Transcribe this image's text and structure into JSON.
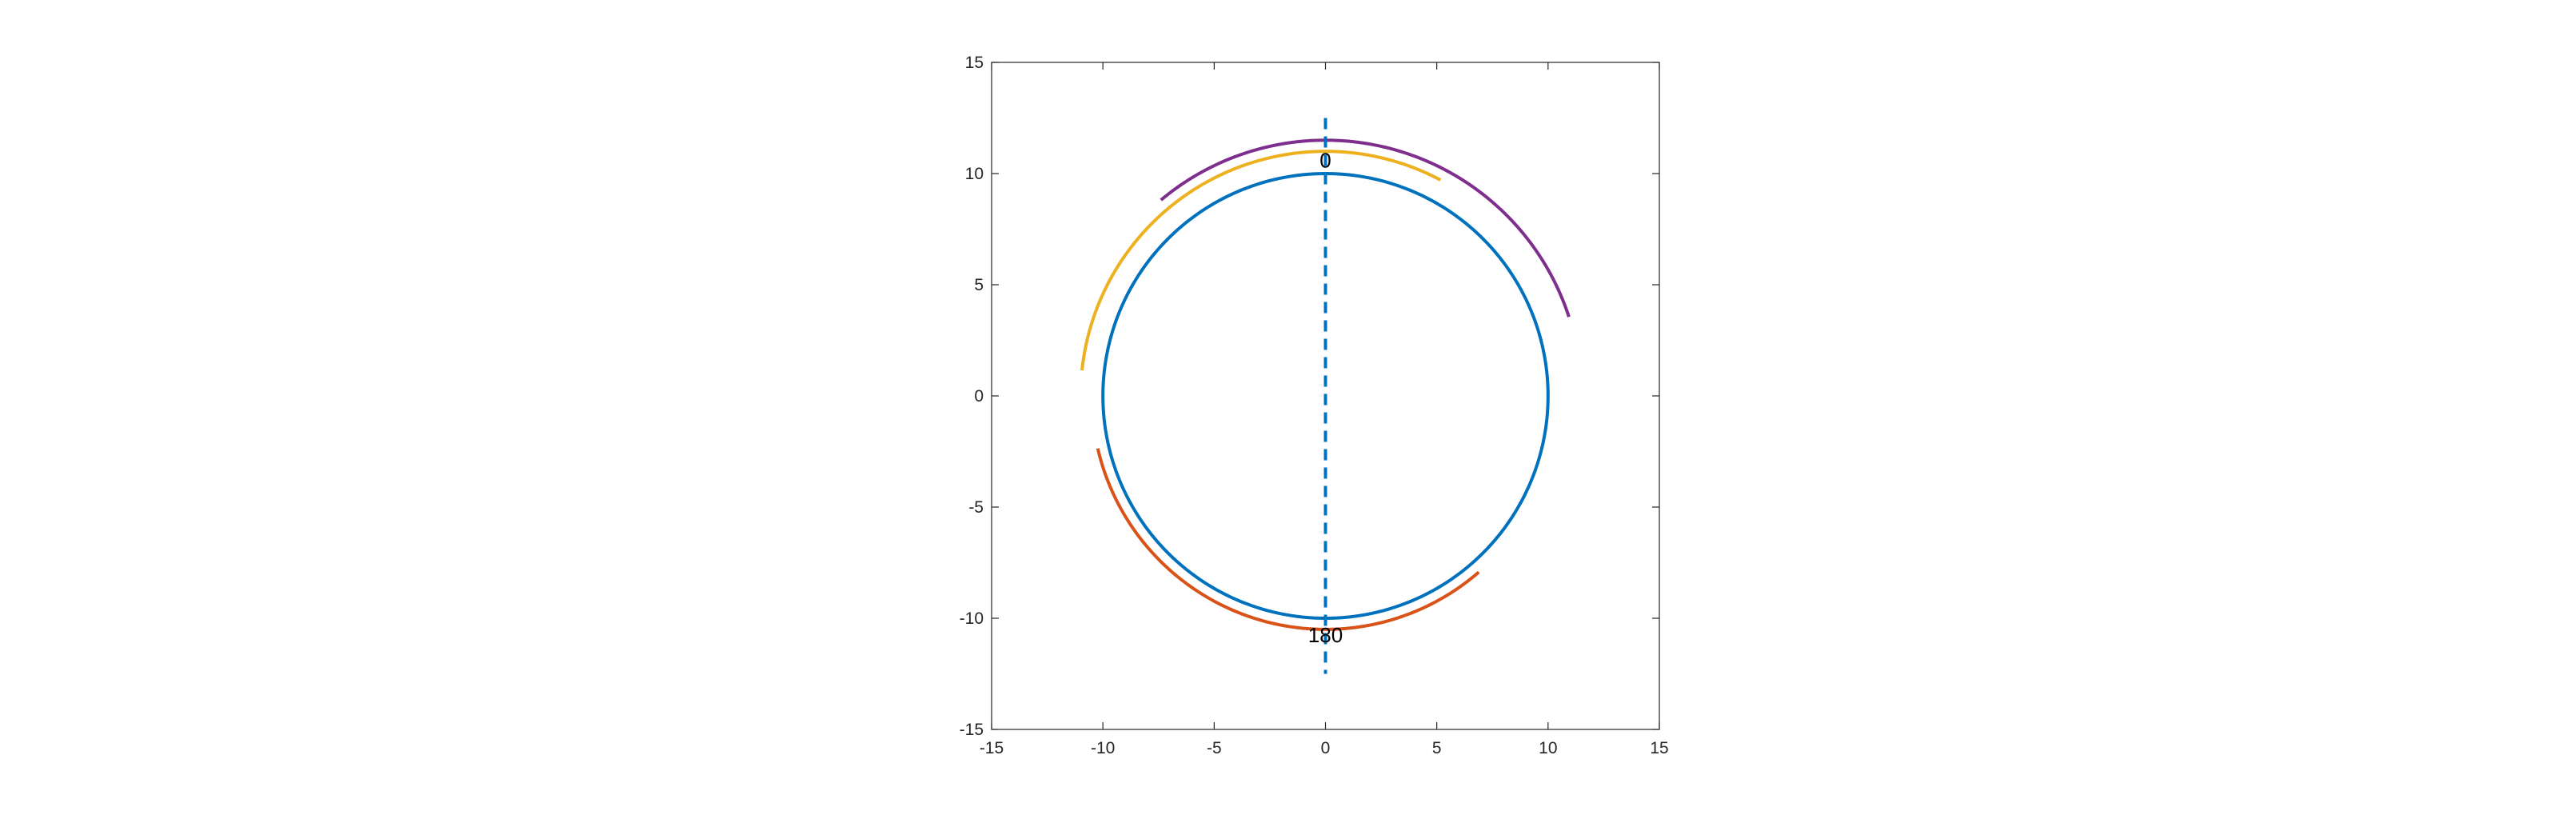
{
  "chart_data": {
    "type": "line",
    "title": "",
    "xlabel": "",
    "ylabel": "",
    "xlim": [
      -15,
      15
    ],
    "ylim": [
      -15,
      15
    ],
    "xticks": [
      -15,
      -10,
      -5,
      0,
      5,
      10,
      15
    ],
    "yticks": [
      -15,
      -10,
      -5,
      0,
      5,
      10,
      15
    ],
    "xtick_labels": [
      "-15",
      "-10",
      "-5",
      "0",
      "5",
      "10",
      "15"
    ],
    "ytick_labels": [
      "-15",
      "-10",
      "-5",
      "0",
      "5",
      "10",
      "15"
    ],
    "grid": false,
    "legend": "none",
    "series": [
      {
        "kind": "circle-arc",
        "center": [
          0,
          0
        ],
        "radius": 10,
        "start_deg": 0,
        "end_deg": 360,
        "color": "#0072BD",
        "dash": "solid"
      },
      {
        "kind": "circle-arc",
        "center": [
          0,
          0
        ],
        "radius": 10.5,
        "start_deg": 193,
        "end_deg": 311,
        "color": "#D95319",
        "dash": "solid"
      },
      {
        "kind": "circle-arc",
        "center": [
          0,
          0
        ],
        "radius": 11,
        "start_deg": 62,
        "end_deg": 174,
        "color": "#EDB120",
        "dash": "solid"
      },
      {
        "kind": "circle-arc",
        "center": [
          0,
          0
        ],
        "radius": 11.5,
        "start_deg": 18,
        "end_deg": 130,
        "color": "#7E2F8E",
        "dash": "solid"
      },
      {
        "kind": "segment",
        "x": [
          0,
          0
        ],
        "y": [
          12.5,
          -12.5
        ],
        "color": "#0072BD",
        "dash": "dashed"
      }
    ],
    "annotations": [
      {
        "text": "0",
        "x": 0,
        "y": 10.6
      },
      {
        "text": "180",
        "x": 0,
        "y": -10.75
      }
    ]
  }
}
